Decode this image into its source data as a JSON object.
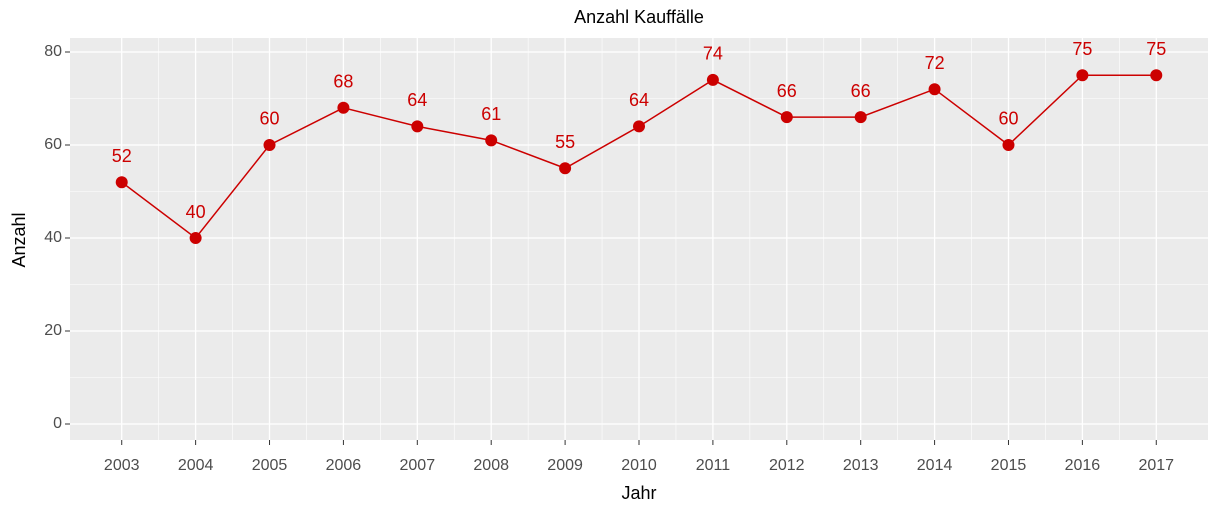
{
  "chart_data": {
    "type": "line",
    "title": "Anzahl Kauffälle",
    "x_label": "Jahr",
    "y_label": "Anzahl",
    "x": [
      2003,
      2004,
      2005,
      2006,
      2007,
      2008,
      2009,
      2010,
      2011,
      2012,
      2013,
      2014,
      2015,
      2016,
      2017
    ],
    "series": [
      {
        "name": "Anzahl",
        "color": "#cc0000",
        "values": [
          52,
          40,
          60,
          68,
          64,
          61,
          55,
          64,
          74,
          66,
          66,
          72,
          60,
          75,
          75
        ]
      }
    ],
    "xlim": [
      2002.3,
      2017.7
    ],
    "xticks": [
      2003,
      2004,
      2005,
      2006,
      2007,
      2008,
      2009,
      2010,
      2011,
      2012,
      2013,
      2014,
      2015,
      2016,
      2017
    ],
    "ylim": [
      -3.44,
      83.01
    ],
    "yticks": [
      0,
      20,
      40,
      60,
      80
    ],
    "grid": true
  }
}
